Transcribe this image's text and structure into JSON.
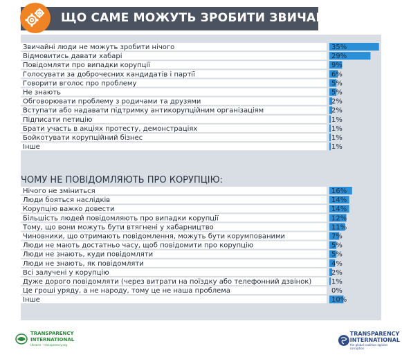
{
  "header": {
    "title": "ЩО САМЕ МОЖУТЬ ЗРОБИТИ ЗВИЧАЙНІ ЛЮДИ:",
    "icon": "gears-icon",
    "accent_color": "#f08323",
    "bar_color": "#4c5360"
  },
  "chart_data": [
    {
      "type": "bar",
      "orientation": "horizontal",
      "title": "",
      "categories": [
        "Звичайні люди не можуть зробити нічого",
        "Відмовитись давати хабарі",
        "Повідомляти про випадки корупції",
        "Голосувати за доброчесних кандидатів і партії",
        "Говорити вголос про проблему",
        "Не знають",
        "Обговорювати проблему з родичами та друзями",
        "Вступати або надавати підтримку антикорупційним організаціям",
        "Підписати петицію",
        "Брати участь в акціях протесту, демонстраціях",
        "Бойкотувати корупційний бізнес",
        "Інше"
      ],
      "values": [
        35,
        29,
        9,
        6,
        5,
        5,
        2,
        2,
        1,
        1,
        1,
        1
      ],
      "value_labels": [
        "35%",
        "29%",
        "9%",
        "6%",
        "5%",
        "5%",
        "2%",
        "2%",
        "1%",
        "1%",
        "1%",
        "1%"
      ],
      "bar_color": "#2a8fd6",
      "unit": "%"
    },
    {
      "type": "bar",
      "orientation": "horizontal",
      "title": "ЧОМУ НЕ ПОВІДОМЛЯЮТЬ ПРО КОРУПЦІЮ:",
      "categories": [
        "Нічого не зміниться",
        "Люди бояться наслідків",
        "Корупцію важко довести",
        "Більшість людей повідомляють про випадки корупції",
        "Тому, що вони можуть бути втягнені у хабарництво",
        "Чиновники, що отримають повідомлення, можуть бути корумпованими",
        "Люди не мають достатньо часу, щоб повідомити про корупцію",
        "Люди не знають, куди повідомляти",
        "Люди не знають, як повідомляти",
        "Всі залучені у корупцію",
        "Дуже дорого повідомляти (через витрати на поїздку або телефонний дзвінок)",
        "Це гроші уряду, а не народу, тому це не наша проблема",
        "Інше"
      ],
      "values": [
        16,
        14,
        14,
        12,
        11,
        7,
        5,
        5,
        4,
        2,
        1,
        0,
        10
      ],
      "value_labels": [
        "16%",
        "14%",
        "14%",
        "12%",
        "11%",
        "7%",
        "5%",
        "5%",
        "4%",
        "2%",
        "1%",
        "0%",
        "10%"
      ],
      "bar_color": "#2a8fd6",
      "unit": "%"
    }
  ],
  "footer": {
    "left_logo": {
      "line1": "TRANSPARENCY",
      "line2": "INTERNATIONAL",
      "tagline": "Ukraine · transparency.org"
    },
    "right_logo": {
      "line1": "TRANSPARENCY",
      "line2": "INTERNATIONAL",
      "tagline": "the global coalition against corruption"
    }
  }
}
